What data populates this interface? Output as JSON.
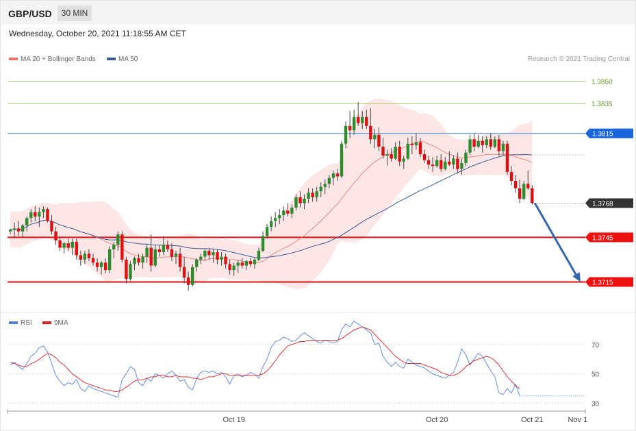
{
  "header": {
    "symbol": "GBP/USD",
    "timeframe": "30 MIN",
    "datetime": "Wednesday, October 20, 2021 11:18:55 AM CET"
  },
  "legend": {
    "ma20": "MA 20 + Bollinger Bands",
    "ma50": "MA 50",
    "credit": "Research © 2021 Trading Central",
    "rsi": "RSI",
    "rsi_ma": "9MA"
  },
  "colors": {
    "bull": "#2e8b2e",
    "bear": "#dd1111",
    "ma20": "#f07070",
    "ma50": "#3c5a96",
    "band": "#fde2e2",
    "resistance": "#a8c870",
    "pivot": "#4488dd",
    "support": "#e01010",
    "arrow": "#3366aa",
    "rsi": "#5580dd",
    "rsi_ma": "#dd2222"
  },
  "chart_data": [
    {
      "type": "candlestick",
      "ylim": [
        1.3694,
        1.386
      ],
      "levels": [
        {
          "value": 1.385,
          "label": "1.3850",
          "kind": "resistance"
        },
        {
          "value": 1.3835,
          "label": "1.3835",
          "kind": "resistance"
        },
        {
          "value": 1.3815,
          "label": "1.3815",
          "kind": "pivot"
        },
        {
          "value": 1.3768,
          "label": "1.3768",
          "kind": "last"
        },
        {
          "value": 1.3745,
          "label": "1.3745",
          "kind": "support"
        },
        {
          "value": 1.3715,
          "label": "1.3715",
          "kind": "support"
        }
      ],
      "xlabels": [
        {
          "index": 54,
          "label": "Oct 19"
        },
        {
          "index": 103,
          "label": "Oct 20"
        },
        {
          "index": 126,
          "label": "Oct 21"
        },
        {
          "index": 137,
          "label": "Nov 1"
        }
      ],
      "target": {
        "value": 1.3715
      },
      "close_at_target": 1.3768,
      "ohlc": [
        [
          1.3749,
          1.3751,
          1.3747,
          1.375
        ],
        [
          1.375,
          1.3755,
          1.3745,
          1.3751
        ],
        [
          1.3751,
          1.3756,
          1.3746,
          1.3749
        ],
        [
          1.3749,
          1.3754,
          1.3745,
          1.3753
        ],
        [
          1.3753,
          1.3759,
          1.3749,
          1.3758
        ],
        [
          1.3758,
          1.3764,
          1.3755,
          1.3762
        ],
        [
          1.3762,
          1.3766,
          1.3756,
          1.3759
        ],
        [
          1.3759,
          1.3765,
          1.3752,
          1.3762
        ],
        [
          1.3762,
          1.3766,
          1.3758,
          1.3764
        ],
        [
          1.3764,
          1.3765,
          1.3755,
          1.3756
        ],
        [
          1.3756,
          1.376,
          1.3747,
          1.3749
        ],
        [
          1.3749,
          1.3752,
          1.374,
          1.3743
        ],
        [
          1.3743,
          1.3745,
          1.3736,
          1.3738
        ],
        [
          1.3738,
          1.3742,
          1.3734,
          1.3741
        ],
        [
          1.3741,
          1.3744,
          1.3736,
          1.3738
        ],
        [
          1.3738,
          1.3744,
          1.3733,
          1.3742
        ],
        [
          1.3742,
          1.3744,
          1.373,
          1.3733
        ],
        [
          1.3733,
          1.3736,
          1.3726,
          1.373
        ],
        [
          1.373,
          1.3736,
          1.3727,
          1.3734
        ],
        [
          1.3734,
          1.3737,
          1.3729,
          1.3731
        ],
        [
          1.3731,
          1.3734,
          1.3726,
          1.3728
        ],
        [
          1.3728,
          1.3731,
          1.3722,
          1.3725
        ],
        [
          1.3725,
          1.3729,
          1.372,
          1.3728
        ],
        [
          1.3728,
          1.3731,
          1.3721,
          1.3723
        ],
        [
          1.3723,
          1.3739,
          1.3721,
          1.3737
        ],
        [
          1.3737,
          1.3742,
          1.3731,
          1.374
        ],
        [
          1.374,
          1.3749,
          1.3736,
          1.3747
        ],
        [
          1.3747,
          1.3749,
          1.3728,
          1.373
        ],
        [
          1.373,
          1.3732,
          1.3714,
          1.3717
        ],
        [
          1.3717,
          1.3729,
          1.3716,
          1.3727
        ],
        [
          1.3727,
          1.3732,
          1.3723,
          1.3731
        ],
        [
          1.3731,
          1.3734,
          1.3726,
          1.3728
        ],
        [
          1.3728,
          1.3734,
          1.3724,
          1.3732
        ],
        [
          1.3732,
          1.374,
          1.3728,
          1.3738
        ],
        [
          1.3738,
          1.3747,
          1.3722,
          1.3726
        ],
        [
          1.3726,
          1.374,
          1.3725,
          1.3737
        ],
        [
          1.3737,
          1.374,
          1.3732,
          1.3735
        ],
        [
          1.3735,
          1.3746,
          1.3733,
          1.374
        ],
        [
          1.374,
          1.3743,
          1.3735,
          1.3737
        ],
        [
          1.3737,
          1.3741,
          1.3729,
          1.3732
        ],
        [
          1.3732,
          1.3736,
          1.3727,
          1.3734
        ],
        [
          1.3734,
          1.3738,
          1.3722,
          1.3725
        ],
        [
          1.3725,
          1.3732,
          1.3714,
          1.3718
        ],
        [
          1.3718,
          1.3722,
          1.3709,
          1.3713
        ],
        [
          1.3713,
          1.3727,
          1.3712,
          1.3725
        ],
        [
          1.3725,
          1.3731,
          1.3722,
          1.373
        ],
        [
          1.373,
          1.3734,
          1.3727,
          1.3732
        ],
        [
          1.3732,
          1.3737,
          1.3729,
          1.3736
        ],
        [
          1.3736,
          1.3738,
          1.373,
          1.3733
        ],
        [
          1.3733,
          1.3737,
          1.3728,
          1.3735
        ],
        [
          1.3735,
          1.3737,
          1.3727,
          1.373
        ],
        [
          1.373,
          1.3735,
          1.3726,
          1.3732
        ],
        [
          1.3732,
          1.3734,
          1.3724,
          1.3727
        ],
        [
          1.3727,
          1.373,
          1.372,
          1.3723
        ],
        [
          1.3723,
          1.3728,
          1.3719,
          1.3726
        ],
        [
          1.3726,
          1.373,
          1.3721,
          1.3728
        ],
        [
          1.3728,
          1.3731,
          1.3724,
          1.3726
        ],
        [
          1.3726,
          1.373,
          1.3723,
          1.3729
        ],
        [
          1.3729,
          1.3731,
          1.3725,
          1.3727
        ],
        [
          1.3727,
          1.3731,
          1.3724,
          1.373
        ],
        [
          1.373,
          1.3738,
          1.3729,
          1.3736
        ],
        [
          1.3736,
          1.3749,
          1.3735,
          1.3746
        ],
        [
          1.3746,
          1.3754,
          1.3744,
          1.3752
        ],
        [
          1.3752,
          1.3759,
          1.3749,
          1.3756
        ],
        [
          1.3756,
          1.3762,
          1.3752,
          1.3758
        ],
        [
          1.3758,
          1.3764,
          1.3754,
          1.376
        ],
        [
          1.376,
          1.3766,
          1.3756,
          1.3763
        ],
        [
          1.3763,
          1.3768,
          1.3759,
          1.3761
        ],
        [
          1.3761,
          1.3767,
          1.3758,
          1.3765
        ],
        [
          1.3765,
          1.3774,
          1.3763,
          1.3772
        ],
        [
          1.3772,
          1.3776,
          1.3765,
          1.3768
        ],
        [
          1.3768,
          1.3774,
          1.3764,
          1.3771
        ],
        [
          1.3771,
          1.3778,
          1.3768,
          1.3775
        ],
        [
          1.3775,
          1.3778,
          1.3769,
          1.3772
        ],
        [
          1.3772,
          1.3779,
          1.3769,
          1.3776
        ],
        [
          1.3776,
          1.3782,
          1.3772,
          1.3779
        ],
        [
          1.3779,
          1.3784,
          1.3774,
          1.3781
        ],
        [
          1.3781,
          1.3787,
          1.3778,
          1.3785
        ],
        [
          1.3785,
          1.379,
          1.378,
          1.3788
        ],
        [
          1.3788,
          1.3791,
          1.3783,
          1.3786
        ],
        [
          1.3786,
          1.381,
          1.3785,
          1.3808
        ],
        [
          1.3808,
          1.3823,
          1.3805,
          1.382
        ],
        [
          1.382,
          1.383,
          1.3812,
          1.3817
        ],
        [
          1.3817,
          1.3831,
          1.3814,
          1.3826
        ],
        [
          1.3826,
          1.3836,
          1.382,
          1.3822
        ],
        [
          1.3822,
          1.383,
          1.3818,
          1.3826
        ],
        [
          1.3826,
          1.3831,
          1.3818,
          1.382
        ],
        [
          1.382,
          1.3832,
          1.3808,
          1.3811
        ],
        [
          1.3811,
          1.3818,
          1.3805,
          1.3814
        ],
        [
          1.3814,
          1.3819,
          1.3803,
          1.3806
        ],
        [
          1.3806,
          1.3812,
          1.3798,
          1.38
        ],
        [
          1.38,
          1.3804,
          1.3793,
          1.3801
        ],
        [
          1.3801,
          1.3805,
          1.3796,
          1.3798
        ],
        [
          1.3798,
          1.3809,
          1.3797,
          1.3806
        ],
        [
          1.3806,
          1.381,
          1.3793,
          1.3796
        ],
        [
          1.3796,
          1.38,
          1.3791,
          1.3798
        ],
        [
          1.3798,
          1.3812,
          1.3797,
          1.3808
        ],
        [
          1.3808,
          1.3813,
          1.3801,
          1.3807
        ],
        [
          1.3807,
          1.3815,
          1.3804,
          1.3809
        ],
        [
          1.3809,
          1.3812,
          1.3799,
          1.3801
        ],
        [
          1.3801,
          1.3804,
          1.3795,
          1.3797
        ],
        [
          1.3797,
          1.38,
          1.3791,
          1.3794
        ],
        [
          1.3794,
          1.3799,
          1.3789,
          1.3793
        ],
        [
          1.3793,
          1.38,
          1.3792,
          1.3797
        ],
        [
          1.3797,
          1.3801,
          1.3789,
          1.3791
        ],
        [
          1.3791,
          1.3799,
          1.379,
          1.3796
        ],
        [
          1.3796,
          1.3803,
          1.3793,
          1.3794
        ],
        [
          1.3794,
          1.38,
          1.3791,
          1.3798
        ],
        [
          1.3798,
          1.3802,
          1.3788,
          1.3791
        ],
        [
          1.3791,
          1.3798,
          1.3787,
          1.3795
        ],
        [
          1.3795,
          1.3804,
          1.3793,
          1.3802
        ],
        [
          1.3802,
          1.3814,
          1.38,
          1.3811
        ],
        [
          1.3811,
          1.3815,
          1.3803,
          1.3806
        ],
        [
          1.3806,
          1.3814,
          1.3805,
          1.381
        ],
        [
          1.381,
          1.3813,
          1.3802,
          1.3807
        ],
        [
          1.3807,
          1.3813,
          1.3805,
          1.3811
        ],
        [
          1.3811,
          1.3815,
          1.3804,
          1.3806
        ],
        [
          1.3806,
          1.3813,
          1.3805,
          1.3811
        ],
        [
          1.3811,
          1.3814,
          1.38,
          1.3803
        ],
        [
          1.3803,
          1.381,
          1.38,
          1.3808
        ],
        [
          1.3808,
          1.381,
          1.3787,
          1.3789
        ],
        [
          1.3789,
          1.3793,
          1.378,
          1.3783
        ],
        [
          1.3783,
          1.3787,
          1.3775,
          1.3778
        ],
        [
          1.3778,
          1.3784,
          1.3768,
          1.3771
        ],
        [
          1.3771,
          1.3783,
          1.377,
          1.3781
        ],
        [
          1.3781,
          1.379,
          1.3777,
          1.3778
        ],
        [
          1.3778,
          1.378,
          1.3767,
          1.3768
        ]
      ]
    },
    {
      "type": "line",
      "name": "RSI",
      "ylim": [
        26,
        90
      ],
      "levels": [
        70,
        50,
        30
      ],
      "x_count": 123,
      "rsi": [
        56,
        58,
        55,
        53,
        57,
        62,
        64,
        68,
        69,
        65,
        57,
        49,
        45,
        42,
        44,
        43,
        46,
        40,
        38,
        42,
        40,
        39,
        38,
        37,
        36,
        35,
        34,
        46,
        50,
        55,
        53,
        44,
        42,
        47,
        45,
        50,
        49,
        47,
        50,
        52,
        49,
        45,
        46,
        41,
        39,
        47,
        51,
        52,
        51,
        52,
        50,
        51,
        48,
        43,
        49,
        50,
        48,
        49,
        51,
        50,
        47,
        55,
        60,
        68,
        72,
        73,
        75,
        74,
        72,
        73,
        76,
        78,
        76,
        74,
        72,
        71,
        73,
        72,
        71,
        72,
        80,
        84,
        82,
        86,
        84,
        82,
        80,
        78,
        70,
        71,
        62,
        58,
        55,
        58,
        55,
        54,
        60,
        58,
        56,
        55,
        54,
        52,
        50,
        49,
        48,
        47,
        49,
        51,
        58,
        67,
        63,
        56,
        60,
        64,
        62,
        57,
        52,
        48,
        37,
        36,
        40,
        37,
        43,
        35
      ],
      "ma": [
        58,
        57,
        56,
        55,
        55,
        57,
        58,
        60,
        62,
        64,
        63,
        61,
        58,
        56,
        53,
        50,
        48,
        46,
        44,
        43,
        42,
        41,
        40,
        39,
        39,
        38,
        38,
        39,
        41,
        43,
        45,
        46,
        46,
        47,
        48,
        48,
        49,
        49,
        48,
        48,
        49,
        48,
        48,
        48,
        47,
        47,
        46,
        47,
        48,
        48,
        49,
        50,
        50,
        49,
        49,
        49,
        49,
        49,
        49,
        49,
        49,
        50,
        52,
        55,
        59,
        63,
        66,
        69,
        70,
        71,
        72,
        72,
        73,
        73,
        73,
        73,
        73,
        73,
        73,
        73,
        74,
        76,
        78,
        80,
        81,
        82,
        81,
        80,
        77,
        74,
        71,
        68,
        65,
        62,
        60,
        58,
        57,
        57,
        57,
        57,
        56,
        55,
        54,
        53,
        51,
        50,
        49,
        49,
        50,
        52,
        55,
        57,
        59,
        60,
        61,
        62,
        61,
        59,
        56,
        52,
        48,
        45,
        42,
        40
      ]
    }
  ]
}
